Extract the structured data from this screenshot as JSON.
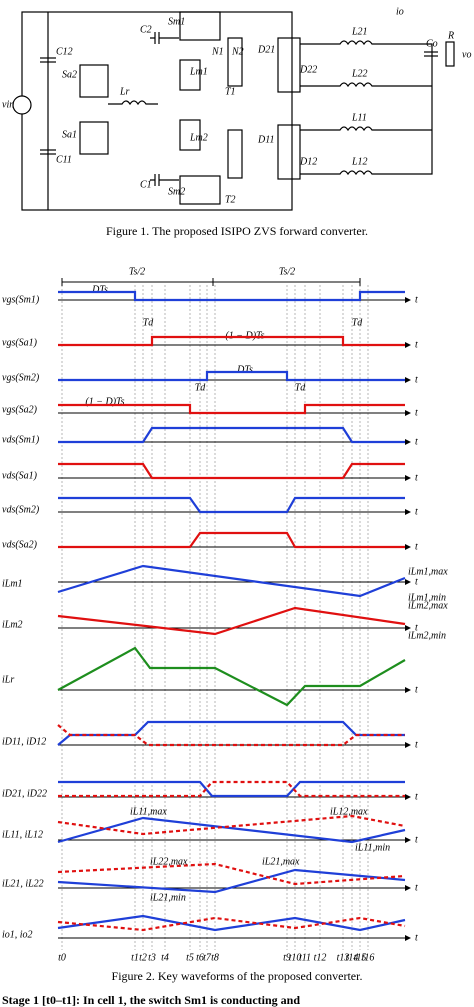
{
  "figure1": {
    "caption": "Figure 1. The proposed ISIPO ZVS forward converter.",
    "labels": [
      "vin",
      "C12",
      "C11",
      "Sa2",
      "Sa1",
      "Lr",
      "C1",
      "C2",
      "Sm1",
      "Sm2",
      "N1",
      "N2",
      "T1",
      "T2",
      "Lm1",
      "Lm2",
      "D21",
      "D22",
      "D11",
      "D12",
      "L21",
      "L22",
      "L11",
      "L12",
      "Co",
      "R",
      "vo",
      "io"
    ]
  },
  "figure2": {
    "caption": "Figure 2. Key waveforms of the proposed converter.",
    "half_period": [
      "Ts/2",
      "Ts/2"
    ],
    "intervals": [
      "DTs",
      "(1 − D)Ts",
      "DTs",
      "(1 − D)Ts",
      "Td",
      "Td",
      "Td",
      "Td"
    ],
    "rows": [
      "vgs(Sm1)",
      "vgs(Sa1)",
      "vgs(Sm2)",
      "vgs(Sa2)",
      "vds(Sm1)",
      "vds(Sa1)",
      "vds(Sm2)",
      "vds(Sa2)",
      "iLm1",
      "iLm2",
      "iLr",
      "iD11, iD12",
      "iD21, iD22",
      "iL11, iL12",
      "iL21, iL22",
      "io1, io2"
    ],
    "axis_label": "t",
    "levels": [
      "iLm1,max",
      "iLm1,min",
      "iLm2,max",
      "iLm2,min"
    ],
    "peaks": [
      "iL11,max",
      "iL12,max",
      "iL11,min",
      "iL22,max",
      "iL21,max",
      "iL21,min"
    ],
    "times": [
      "t0",
      "t1",
      "t2",
      "t3",
      "t4",
      "t5",
      "t6",
      "t7",
      "t8",
      "t9",
      "t10",
      "t11",
      "t12",
      "t13",
      "t14",
      "t15",
      "t16"
    ]
  },
  "body_text": "Stage 1 [t0–t1]: In cell 1, the switch Sm1 is conducting and"
}
